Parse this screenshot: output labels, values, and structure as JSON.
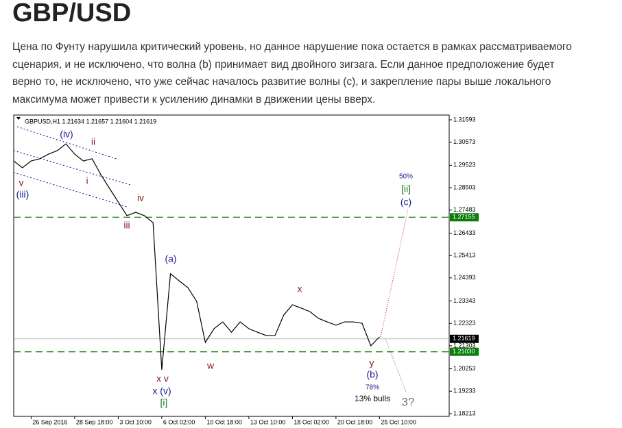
{
  "article": {
    "title": "GBP/USD",
    "text": "Цена по Фунту нарушила критический уровень, но данное нарушение пока остается в рамках рассматриваемого сценария, и не исключено, что волна (b) принимает вид двойного зигзага. Если данное предположение будет верно то, не исключено, что уже сейчас началось развитие волны (c), и закрепление пары выше локального максимума может привести к усилению динамки в движении цены вверх."
  },
  "chart_data": {
    "type": "line",
    "header": "GBPUSD,H1  1.21634 1.21657 1.21604 1.21619",
    "categories": [
      null,
      null,
      "26 Sep 2016",
      null,
      null,
      null,
      null,
      "28 Sep 18:00",
      null,
      null,
      null,
      null,
      "3 Oct 10:00",
      null,
      null,
      null,
      null,
      "6 Oct 02:00",
      null,
      null,
      null,
      null,
      "10 Oct 18:00",
      null,
      null,
      null,
      null,
      "13 Oct 10:00",
      null,
      null,
      null,
      null,
      "18 Oct 02:00",
      null,
      null,
      null,
      null,
      "20 Oct 18:00",
      null,
      null,
      null,
      null,
      "25 Oct 10:00"
    ],
    "series": [
      {
        "name": "GBPUSD",
        "color": "#000000",
        "values": [
          1.2972,
          1.2941,
          1.2972,
          1.2982,
          1.3003,
          1.3019,
          1.305,
          1.3003,
          1.2972,
          1.2982,
          1.291,
          1.2847,
          1.2785,
          1.2723,
          1.2738,
          1.2723,
          1.2691,
          1.2021,
          1.2458,
          1.2426,
          1.2395,
          1.2333,
          1.2146,
          1.2208,
          1.2239,
          1.2192,
          1.2239,
          1.2208,
          1.2192,
          1.2177,
          1.2177,
          1.227,
          1.2317,
          1.2302,
          1.2286,
          1.2255,
          1.2239,
          1.2224,
          1.2239,
          1.2239,
          1.2233,
          1.213,
          1.2171
        ]
      }
    ],
    "ylim": [
      1.18088,
      1.31811
    ],
    "yticks": [
      1.31593,
      1.30573,
      1.29523,
      1.28503,
      1.27483,
      1.26433,
      1.25413,
      1.24393,
      1.23343,
      1.22323,
      1.21303,
      1.20253,
      1.19233,
      1.18213
    ],
    "level_lines": [
      1.27155,
      {
        "value": 1.2103,
        "label": "1.21030"
      }
    ],
    "current_price": 1.21619,
    "grid": false,
    "annotations": [
      "v",
      "(iii)",
      "(iv)",
      "ii",
      "i",
      "iv",
      "iii",
      "(a)",
      "x",
      "w",
      "x v",
      "x (v)",
      "[i]",
      "y",
      "(b)",
      "78%",
      "13% bulls",
      "50%",
      "[ii]",
      "(c)",
      "3?"
    ]
  }
}
